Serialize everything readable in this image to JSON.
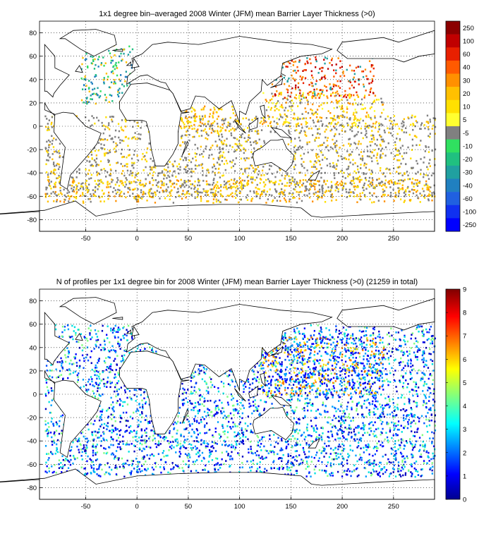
{
  "chart_data": [
    {
      "type": "heatmap",
      "title": "1x1 degree bin–averaged 2008 Winter (JFM) mean Barrier Layer Thickness (>0)",
      "xlim": [
        -95,
        290
      ],
      "ylim": [
        -90,
        90
      ],
      "x_ticks": [
        "-50",
        "0",
        "50",
        "100",
        "150",
        "200",
        "250"
      ],
      "y_ticks": [
        "80",
        "60",
        "40",
        "20",
        "0",
        "-20",
        "-40",
        "-60",
        "-80"
      ],
      "grid": true,
      "colorbar_labels": [
        "250",
        "100",
        "60",
        "40",
        "30",
        "20",
        "10",
        "5",
        "-5",
        "-10",
        "-20",
        "-30",
        "-40",
        "-60",
        "-100",
        "-250"
      ],
      "colorbar_colors": [
        "#8b0000",
        "#c00000",
        "#e82000",
        "#ff5a00",
        "#ff9000",
        "#ffc000",
        "#ffe000",
        "#ffff30",
        "#808080",
        "#30e060",
        "#20c080",
        "#20a0a0",
        "#2080c0",
        "#2060e0",
        "#1030f0",
        "#0000ff"
      ],
      "regions": [
        {
          "lon": [
            -55,
            -5
          ],
          "lat": [
            20,
            70
          ],
          "bins": [
            "#20c080",
            "#30e060",
            "#2080c0",
            "#ffc000",
            "#20a0a0"
          ]
        },
        {
          "lon": [
            130,
            230
          ],
          "lat": [
            25,
            60
          ],
          "bins": [
            "#c00000",
            "#e82000",
            "#ff5a00",
            "#ff9000",
            "#20a0a0"
          ]
        },
        {
          "lon": [
            120,
            240
          ],
          "lat": [
            0,
            30
          ],
          "bins": [
            "#ffc000",
            "#ffe000",
            "#ff9000",
            "#ffff30",
            "#808080"
          ]
        },
        {
          "lon": [
            40,
            100
          ],
          "lat": [
            -5,
            20
          ],
          "bins": [
            "#ffc000",
            "#ff9000",
            "#ffe000"
          ]
        },
        {
          "lon": [
            -90,
            290
          ],
          "lat": [
            -60,
            10
          ],
          "bins": [
            "#808080",
            "#808080",
            "#808080",
            "#ffe000",
            "#ffc000"
          ]
        },
        {
          "lon": [
            -90,
            290
          ],
          "lat": [
            -65,
            -45
          ],
          "bins": [
            "#ffe000",
            "#ffc000",
            "#ff9000",
            "#808080"
          ]
        }
      ]
    },
    {
      "type": "heatmap",
      "title": "N of profiles per 1x1 degree bin for 2008 Winter (JFM) mean Barrier Layer Thickness (>0) (21259 in total)",
      "xlim": [
        -95,
        290
      ],
      "ylim": [
        -90,
        90
      ],
      "x_ticks": [
        "-50",
        "0",
        "50",
        "100",
        "150",
        "200",
        "250"
      ],
      "y_ticks": [
        "80",
        "60",
        "40",
        "20",
        "0",
        "-20",
        "-40",
        "-60",
        "-80"
      ],
      "grid": true,
      "colorbar_labels": [
        "9",
        "8",
        "7",
        "6",
        "5",
        "4",
        "3",
        "2",
        "1",
        "0"
      ],
      "colorbar_range": [
        0,
        9
      ],
      "regions": [
        {
          "lon": [
            -90,
            290
          ],
          "lat": [
            -70,
            60
          ],
          "bins": [
            "#0000c0",
            "#0000ff",
            "#0050ff",
            "#00a0ff",
            "#00e0e0",
            "#80ff80"
          ]
        },
        {
          "lon": [
            120,
            240
          ],
          "lat": [
            0,
            50
          ],
          "bins": [
            "#0000ff",
            "#00a0ff",
            "#ffe000",
            "#ff8000"
          ]
        }
      ]
    }
  ]
}
